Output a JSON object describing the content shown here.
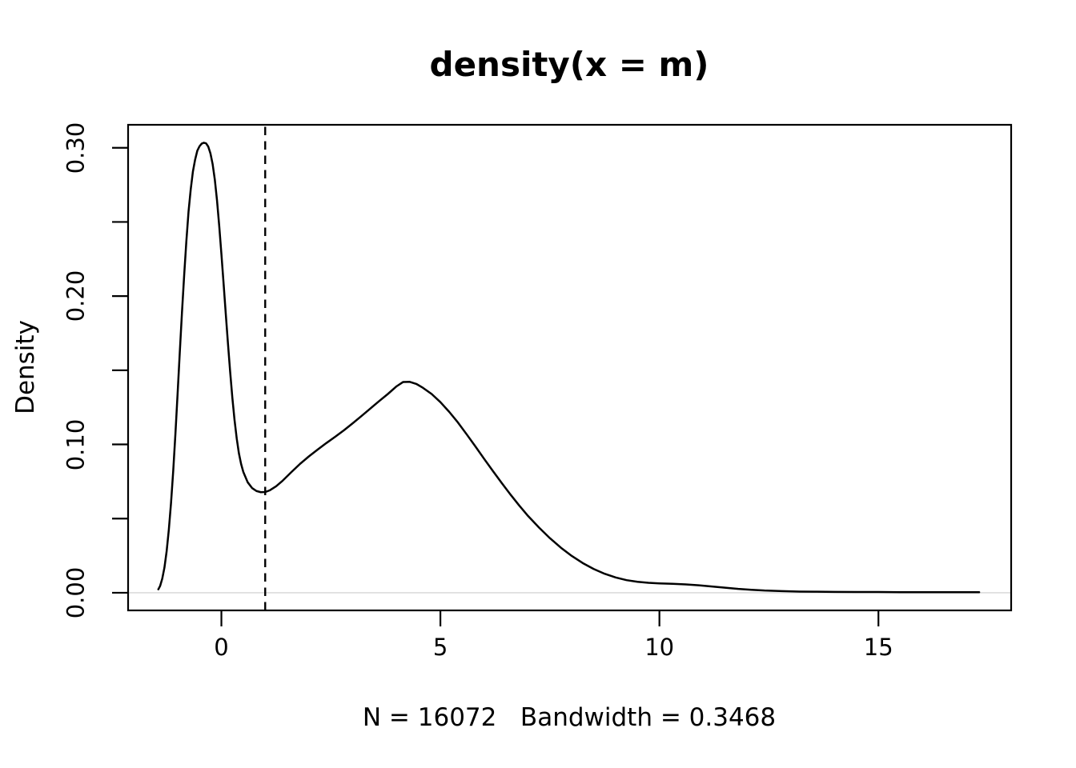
{
  "chart_data": {
    "type": "line",
    "title": "density(x = m)",
    "xlabel": "N = 16072   Bandwidth = 0.3468",
    "ylabel": "Density",
    "xlim": [
      -2.13,
      18.03
    ],
    "ylim": [
      -0.0119,
      0.3155
    ],
    "x_ticks": [
      0,
      5,
      10,
      15
    ],
    "x_tick_labels": [
      "0",
      "5",
      "10",
      "15"
    ],
    "y_ticks": [
      0.0,
      0.05,
      0.1,
      0.15,
      0.2,
      0.25,
      0.3
    ],
    "y_tick_labels": [
      "0.00",
      "",
      "0.10",
      "",
      "0.20",
      "",
      "0.30"
    ],
    "grid": false,
    "legend_position": "none",
    "n": 16072,
    "bandwidth": 0.3468,
    "annotations": {
      "dashed_vline_x": 1,
      "zero_hline_y": 0
    },
    "series": [
      {
        "name": "density",
        "color": "#000000",
        "points": [
          [
            -1.44,
            0.0023
          ],
          [
            -1.4,
            0.0045
          ],
          [
            -1.35,
            0.0095
          ],
          [
            -1.3,
            0.017
          ],
          [
            -1.25,
            0.028
          ],
          [
            -1.2,
            0.0425
          ],
          [
            -1.15,
            0.0605
          ],
          [
            -1.1,
            0.082
          ],
          [
            -1.05,
            0.107
          ],
          [
            -1.0,
            0.134
          ],
          [
            -0.95,
            0.162
          ],
          [
            -0.9,
            0.189
          ],
          [
            -0.85,
            0.214
          ],
          [
            -0.8,
            0.237
          ],
          [
            -0.75,
            0.257
          ],
          [
            -0.7,
            0.272
          ],
          [
            -0.65,
            0.284
          ],
          [
            -0.6,
            0.292
          ],
          [
            -0.55,
            0.298
          ],
          [
            -0.5,
            0.301
          ],
          [
            -0.45,
            0.3028
          ],
          [
            -0.4,
            0.3034
          ],
          [
            -0.35,
            0.303
          ],
          [
            -0.3,
            0.3008
          ],
          [
            -0.25,
            0.2962
          ],
          [
            -0.2,
            0.289
          ],
          [
            -0.15,
            0.2785
          ],
          [
            -0.1,
            0.2645
          ],
          [
            -0.05,
            0.2475
          ],
          [
            0.0,
            0.2285
          ],
          [
            0.05,
            0.2085
          ],
          [
            0.1,
            0.188
          ],
          [
            0.15,
            0.168
          ],
          [
            0.2,
            0.149
          ],
          [
            0.25,
            0.1315
          ],
          [
            0.3,
            0.1165
          ],
          [
            0.35,
            0.104
          ],
          [
            0.4,
            0.094
          ],
          [
            0.45,
            0.0868
          ],
          [
            0.5,
            0.0815
          ],
          [
            0.6,
            0.0745
          ],
          [
            0.7,
            0.0706
          ],
          [
            0.8,
            0.0686
          ],
          [
            0.9,
            0.0678
          ],
          [
            1.0,
            0.0679
          ],
          [
            1.1,
            0.069
          ],
          [
            1.25,
            0.0718
          ],
          [
            1.4,
            0.0756
          ],
          [
            1.6,
            0.0814
          ],
          [
            1.8,
            0.087
          ],
          [
            2.0,
            0.092
          ],
          [
            2.2,
            0.0966
          ],
          [
            2.4,
            0.101
          ],
          [
            2.6,
            0.1052
          ],
          [
            2.8,
            0.1096
          ],
          [
            3.0,
            0.1143
          ],
          [
            3.2,
            0.1192
          ],
          [
            3.4,
            0.1242
          ],
          [
            3.6,
            0.1292
          ],
          [
            3.8,
            0.134
          ],
          [
            4.0,
            0.1392
          ],
          [
            4.15,
            0.1421
          ],
          [
            4.3,
            0.1422
          ],
          [
            4.45,
            0.1408
          ],
          [
            4.6,
            0.1382
          ],
          [
            4.8,
            0.134
          ],
          [
            5.0,
            0.1285
          ],
          [
            5.2,
            0.122
          ],
          [
            5.4,
            0.1148
          ],
          [
            5.6,
            0.1068
          ],
          [
            5.8,
            0.0986
          ],
          [
            6.0,
            0.0902
          ],
          [
            6.2,
            0.082
          ],
          [
            6.4,
            0.074
          ],
          [
            6.6,
            0.0662
          ],
          [
            6.8,
            0.0588
          ],
          [
            7.0,
            0.0518
          ],
          [
            7.25,
            0.044
          ],
          [
            7.5,
            0.0368
          ],
          [
            7.75,
            0.0304
          ],
          [
            8.0,
            0.0248
          ],
          [
            8.25,
            0.02
          ],
          [
            8.5,
            0.016
          ],
          [
            8.75,
            0.0128
          ],
          [
            9.0,
            0.0103
          ],
          [
            9.25,
            0.0085
          ],
          [
            9.5,
            0.0074
          ],
          [
            9.75,
            0.0067
          ],
          [
            10.0,
            0.0063
          ],
          [
            10.3,
            0.006
          ],
          [
            10.6,
            0.0056
          ],
          [
            10.9,
            0.005
          ],
          [
            11.2,
            0.0042
          ],
          [
            11.5,
            0.0034
          ],
          [
            11.8,
            0.0026
          ],
          [
            12.1,
            0.002
          ],
          [
            12.4,
            0.0015
          ],
          [
            12.8,
            0.0011
          ],
          [
            13.2,
            0.0008
          ],
          [
            13.6,
            0.0007
          ],
          [
            14.0,
            0.0006
          ],
          [
            14.5,
            0.0005
          ],
          [
            15.0,
            0.0005
          ],
          [
            15.5,
            0.0004
          ],
          [
            16.0,
            0.0004
          ],
          [
            16.5,
            0.0004
          ],
          [
            17.0,
            0.0004
          ],
          [
            17.3,
            0.0004
          ]
        ]
      }
    ]
  },
  "colors": {
    "background": "#ffffff",
    "foreground": "#000000",
    "zero_line": "#dcdcdc"
  }
}
